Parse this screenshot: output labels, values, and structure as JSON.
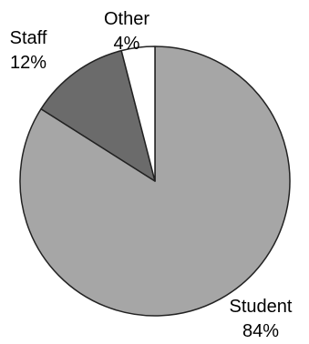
{
  "chart_data": {
    "type": "pie",
    "title": "",
    "slices": [
      {
        "label": "Student",
        "percent_label": "84%",
        "value": 84,
        "color": "#a6a6a6"
      },
      {
        "label": "Staff",
        "percent_label": "12%",
        "value": 12,
        "color": "#6b6b6b"
      },
      {
        "label": "Other",
        "percent_label": "4%",
        "value": 4,
        "color": "#ffffff"
      }
    ],
    "start_angle_deg": 0,
    "direction": "clockwise",
    "legend": "none",
    "stroke_color": "#222222"
  }
}
